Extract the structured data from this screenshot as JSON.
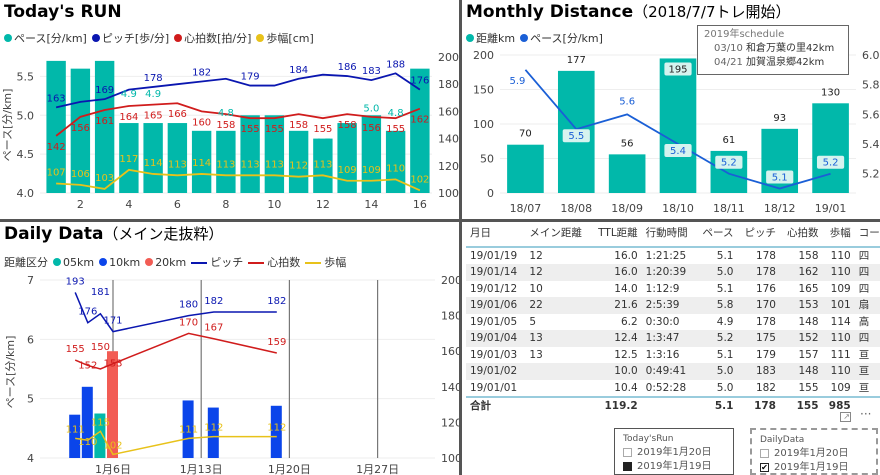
{
  "today": {
    "title": "Today's RUN",
    "legend": [
      "ペース[分/km]",
      "ピッチ[歩/分]",
      "心拍数[拍/分]",
      "歩幅[cm]"
    ],
    "colors": {
      "pace": "#01b8aa",
      "pitch": "#0a16b0",
      "heart": "#d01c1c",
      "stride": "#e8c21a"
    },
    "chart_data": {
      "type": "bar+line",
      "ylabel": "ペース[分/km]",
      "ylim": [
        4.0,
        5.75
      ],
      "y2lim": [
        100,
        200
      ],
      "yticks": [
        "4.0",
        "4.5",
        "5.0",
        "5.5"
      ],
      "y2ticks": [
        "100",
        "120",
        "140",
        "160",
        "180",
        "200"
      ],
      "x": [
        1,
        2,
        3,
        4,
        5,
        6,
        7,
        8,
        9,
        10,
        11,
        12,
        13,
        14,
        15,
        16
      ],
      "xticks": [
        "2",
        "4",
        "6",
        "8",
        "10",
        "12",
        "14",
        "16"
      ],
      "pace": [
        5.7,
        5.6,
        5.7,
        4.9,
        4.9,
        4.9,
        4.8,
        4.8,
        5.0,
        5.0,
        4.8,
        4.7,
        4.9,
        5.0,
        4.8,
        5.6
      ],
      "pace_labels": {
        "4": "4.9",
        "5": "4.9",
        "8": "4.8",
        "12": "4.7",
        "14": "5.0",
        "15": "4.8"
      },
      "pitch": [
        163,
        167,
        169,
        176,
        178,
        180,
        182,
        184,
        179,
        179,
        184,
        187,
        186,
        183,
        188,
        176
      ],
      "heart": [
        142,
        156,
        161,
        164,
        165,
        166,
        160,
        158,
        155,
        155,
        158,
        155,
        158,
        156,
        155,
        162
      ],
      "stride": [
        107,
        106,
        103,
        117,
        114,
        113,
        114,
        113,
        113,
        113,
        112,
        113,
        109,
        109,
        110,
        102
      ]
    }
  },
  "monthly": {
    "title": "Monthly Distance",
    "subtitle": "（2018/7/7トレ開始）",
    "legend": [
      "距離km",
      "ペース[分/km]"
    ],
    "schedule": {
      "head": "2019年schedule",
      "items": [
        {
          "date": "03/10",
          "name": "和倉万葉の里42km"
        },
        {
          "date": "04/21",
          "name": "加賀温泉郷42km"
        }
      ]
    },
    "chart_data": {
      "type": "bar+line",
      "ylim": [
        0,
        200
      ],
      "y2lim": [
        5.07,
        6.0
      ],
      "yticks": [
        "0",
        "50",
        "100",
        "150",
        "200"
      ],
      "y2ticks": [
        "5.2",
        "5.4",
        "5.6",
        "5.8",
        "6.0"
      ],
      "categories": [
        "18/07",
        "18/08",
        "18/09",
        "18/10",
        "18/11",
        "18/12",
        "19/01"
      ],
      "distance": [
        70,
        177,
        56,
        195,
        61,
        93,
        130
      ],
      "pace": [
        5.9,
        5.5,
        5.6,
        5.4,
        5.2,
        5.1,
        5.2
      ]
    }
  },
  "daily": {
    "title": "Daily Data",
    "subtitle": "（メイン走抜粋）",
    "legend_title": "距離区分",
    "legend": [
      "05km",
      "10km",
      "20km",
      "ピッチ",
      "心拍数",
      "歩幅"
    ],
    "colors": {
      "05km": "#01b8aa",
      "10km": "#0b45ea",
      "20km": "#f25c54",
      "pitch": "#0a16b0",
      "heart": "#d01c1c",
      "stride": "#e8c21a"
    },
    "chart_data": {
      "type": "bar+line",
      "ylabel": "ペース[分/km]",
      "ylim": [
        4,
        7
      ],
      "y2lim": [
        100,
        200
      ],
      "yticks": [
        "4",
        "5",
        "6",
        "7"
      ],
      "y2ticks": [
        "100",
        "120",
        "140",
        "160",
        "180",
        "200"
      ],
      "xticks": [
        {
          "day": 6,
          "label": "1月6日"
        },
        {
          "day": 13,
          "label": "1月13日"
        },
        {
          "day": 20,
          "label": "1月20日"
        },
        {
          "day": 27,
          "label": "1月27日"
        }
      ],
      "days": [
        3,
        4,
        5,
        6,
        12,
        14,
        19
      ],
      "category": [
        "10km",
        "10km",
        "05km",
        "20km",
        "10km",
        "10km",
        "10km"
      ],
      "pace": [
        4.73,
        5.2,
        4.75,
        5.8,
        4.97,
        4.85,
        4.88
      ],
      "pitch": [
        193,
        176,
        181,
        171,
        180,
        182,
        182
      ],
      "heart": [
        155,
        152,
        150,
        153,
        170,
        167,
        159
      ],
      "stride": [
        111,
        110,
        115,
        102,
        111,
        112,
        112
      ]
    }
  },
  "table": {
    "headers": [
      "月日",
      "メイン距離",
      "TTL距離",
      "行動時間",
      "ペース",
      "ピッチ",
      "心拍数",
      "歩幅",
      "コー"
    ],
    "rows": [
      [
        "19/01/19",
        "12",
        "16.0",
        "1:21:25",
        "5.1",
        "178",
        "158",
        "110",
        "四"
      ],
      [
        "19/01/14",
        "12",
        "16.0",
        "1:20:39",
        "5.0",
        "178",
        "162",
        "110",
        "四"
      ],
      [
        "19/01/12",
        "10",
        "14.0",
        "1:12:9",
        "5.1",
        "176",
        "165",
        "109",
        "四"
      ],
      [
        "19/01/06",
        "22",
        "21.6",
        "2:5:39",
        "5.8",
        "170",
        "153",
        "101",
        "扇"
      ],
      [
        "19/01/05",
        "5",
        "6.2",
        "0:30:0",
        "4.9",
        "178",
        "148",
        "114",
        "高"
      ],
      [
        "19/01/04",
        "13",
        "12.4",
        "1:3:47",
        "5.2",
        "175",
        "152",
        "110",
        "四"
      ],
      [
        "19/01/03",
        "13",
        "12.5",
        "1:3:16",
        "5.1",
        "179",
        "157",
        "111",
        "亘"
      ],
      [
        "19/01/02",
        "",
        "10.0",
        "0:49:41",
        "5.0",
        "183",
        "148",
        "110",
        "亘"
      ],
      [
        "19/01/01",
        "",
        "10.4",
        "0:52:28",
        "5.0",
        "182",
        "155",
        "109",
        "亘"
      ]
    ],
    "total": [
      "合計",
      "",
      "119.2",
      "",
      "5.1",
      "178",
      "155",
      "985",
      ""
    ]
  },
  "slicers": [
    {
      "title": "Today'sRun",
      "items": [
        {
          "label": "2019年1月20日",
          "checked": false
        },
        {
          "label": "2019年1月19日",
          "checked": true
        }
      ]
    },
    {
      "title": "DailyData",
      "items": [
        {
          "label": "2019年1月20日",
          "checked": false
        },
        {
          "label": "2019年1月19日",
          "checked": true
        }
      ]
    }
  ]
}
